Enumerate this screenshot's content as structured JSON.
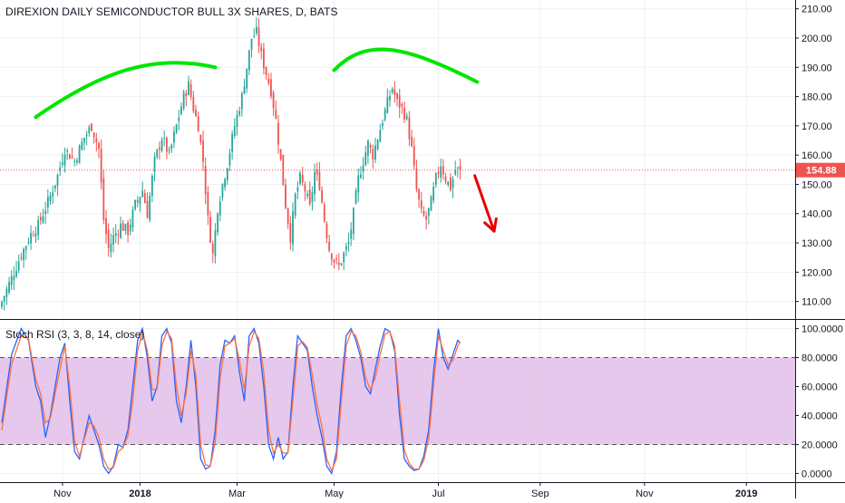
{
  "chart_data": [
    {
      "type": "candlestick",
      "title": "DIREXION DAILY SEMICONDUCTOR BULL 3X SHARES, D, BATS",
      "last_price_label": "154.88",
      "last_price": 154.88,
      "ylim": [
        104,
        213
      ],
      "y_ticks": [
        {
          "label": "210.00",
          "value": 210
        },
        {
          "label": "200.00",
          "value": 200
        },
        {
          "label": "190.00",
          "value": 190
        },
        {
          "label": "180.00",
          "value": 180
        },
        {
          "label": "170.00",
          "value": 170
        },
        {
          "label": "160.00",
          "value": 160
        },
        {
          "label": "150.00",
          "value": 150
        },
        {
          "label": "140.00",
          "value": 140
        },
        {
          "label": "130.00",
          "value": 130
        },
        {
          "label": "120.00",
          "value": 120
        },
        {
          "label": "110.00",
          "value": 110
        }
      ],
      "x_ticks": [
        {
          "label": "Nov",
          "index": 25
        },
        {
          "label": "2018",
          "index": 57
        },
        {
          "label": "Mar",
          "index": 97
        },
        {
          "label": "May",
          "index": 137
        },
        {
          "label": "Jul",
          "index": 180
        },
        {
          "label": "Sep",
          "index": 222
        },
        {
          "label": "Nov",
          "index": 265
        },
        {
          "label": "2019",
          "index": 307
        }
      ],
      "close_anchors": [
        [
          0,
          110
        ],
        [
          4,
          118
        ],
        [
          8,
          126
        ],
        [
          12,
          133
        ],
        [
          15,
          136
        ],
        [
          20,
          146
        ],
        [
          23,
          153
        ],
        [
          26,
          162
        ],
        [
          30,
          158
        ],
        [
          34,
          166
        ],
        [
          37,
          170
        ],
        [
          40,
          162
        ],
        [
          42,
          138
        ],
        [
          44,
          128
        ],
        [
          46,
          132
        ],
        [
          49,
          136
        ],
        [
          52,
          134
        ],
        [
          55,
          143
        ],
        [
          58,
          148
        ],
        [
          60,
          140
        ],
        [
          63,
          158
        ],
        [
          66,
          166
        ],
        [
          69,
          160
        ],
        [
          72,
          170
        ],
        [
          75,
          180
        ],
        [
          77,
          184
        ],
        [
          79,
          176
        ],
        [
          81,
          170
        ],
        [
          83,
          158
        ],
        [
          85,
          138
        ],
        [
          87,
          126
        ],
        [
          89,
          142
        ],
        [
          91,
          150
        ],
        [
          93,
          157
        ],
        [
          96,
          170
        ],
        [
          99,
          180
        ],
        [
          101,
          190
        ],
        [
          103,
          200
        ],
        [
          105,
          202
        ],
        [
          107,
          194
        ],
        [
          109,
          188
        ],
        [
          111,
          182
        ],
        [
          113,
          172
        ],
        [
          115,
          158
        ],
        [
          117,
          143
        ],
        [
          119,
          132
        ],
        [
          121,
          146
        ],
        [
          123,
          152
        ],
        [
          125,
          148
        ],
        [
          127,
          142
        ],
        [
          129,
          154
        ],
        [
          131,
          150
        ],
        [
          133,
          138
        ],
        [
          135,
          128
        ],
        [
          137,
          124
        ],
        [
          139,
          122
        ],
        [
          141,
          126
        ],
        [
          143,
          130
        ],
        [
          145,
          140
        ],
        [
          147,
          152
        ],
        [
          149,
          158
        ],
        [
          151,
          164
        ],
        [
          153,
          160
        ],
        [
          155,
          166
        ],
        [
          157,
          172
        ],
        [
          159,
          178
        ],
        [
          161,
          183
        ],
        [
          163,
          178
        ],
        [
          165,
          176
        ],
        [
          167,
          172
        ],
        [
          169,
          162
        ],
        [
          171,
          148
        ],
        [
          173,
          140
        ],
        [
          175,
          138
        ],
        [
          177,
          144
        ],
        [
          179,
          152
        ],
        [
          181,
          157
        ],
        [
          183,
          152
        ],
        [
          185,
          149
        ],
        [
          187,
          155
        ],
        [
          189,
          154.88
        ]
      ],
      "overlays": [
        {
          "type": "arc",
          "color": "#00e600",
          "points": [
            [
              14,
              173
            ],
            [
              40,
              188
            ],
            [
              62,
              195
            ],
            [
              88,
              190
            ]
          ]
        },
        {
          "type": "arc",
          "color": "#00e600",
          "points": [
            [
              137,
              189
            ],
            [
              150,
              200
            ],
            [
              165,
              198
            ],
            [
              196,
              185
            ]
          ]
        },
        {
          "type": "arrow",
          "color": "#e60000",
          "from": [
            195,
            153
          ],
          "to": [
            203,
            134
          ]
        }
      ],
      "colors": {
        "up": "#26a69a",
        "down": "#ef5350",
        "price_line": "#ef5350"
      }
    },
    {
      "type": "line",
      "title": "Stoch RSI (3, 3, 8, 14, close)",
      "ylim": [
        -6,
        106
      ],
      "y_ticks": [
        {
          "label": "100.0000",
          "value": 100
        },
        {
          "label": "80.0000",
          "value": 80
        },
        {
          "label": "60.0000",
          "value": 60
        },
        {
          "label": "40.0000",
          "value": 40
        },
        {
          "label": "20.0000",
          "value": 20
        },
        {
          "label": "0.0000",
          "value": 0
        }
      ],
      "band": {
        "upper": 80,
        "lower": 20,
        "fill": "#e1bee7"
      },
      "series": [
        {
          "color": "#2962ff",
          "anchors": [
            [
              0,
              35
            ],
            [
              4,
              82
            ],
            [
              8,
              100
            ],
            [
              11,
              92
            ],
            [
              14,
              60
            ],
            [
              16,
              50
            ],
            [
              18,
              25
            ],
            [
              20,
              40
            ],
            [
              24,
              80
            ],
            [
              26,
              90
            ],
            [
              28,
              50
            ],
            [
              30,
              15
            ],
            [
              32,
              10
            ],
            [
              36,
              40
            ],
            [
              38,
              30
            ],
            [
              40,
              20
            ],
            [
              42,
              5
            ],
            [
              44,
              0
            ],
            [
              46,
              5
            ],
            [
              48,
              20
            ],
            [
              50,
              18
            ],
            [
              52,
              30
            ],
            [
              54,
              60
            ],
            [
              56,
              92
            ],
            [
              58,
              100
            ],
            [
              60,
              80
            ],
            [
              62,
              50
            ],
            [
              64,
              60
            ],
            [
              66,
              95
            ],
            [
              68,
              100
            ],
            [
              70,
              90
            ],
            [
              72,
              50
            ],
            [
              74,
              35
            ],
            [
              76,
              60
            ],
            [
              78,
              92
            ],
            [
              80,
              60
            ],
            [
              82,
              10
            ],
            [
              84,
              3
            ],
            [
              86,
              5
            ],
            [
              88,
              30
            ],
            [
              90,
              75
            ],
            [
              92,
              92
            ],
            [
              94,
              90
            ],
            [
              96,
              95
            ],
            [
              98,
              70
            ],
            [
              100,
              50
            ],
            [
              102,
              95
            ],
            [
              104,
              100
            ],
            [
              106,
              90
            ],
            [
              108,
              60
            ],
            [
              110,
              20
            ],
            [
              112,
              10
            ],
            [
              114,
              25
            ],
            [
              116,
              10
            ],
            [
              118,
              15
            ],
            [
              120,
              60
            ],
            [
              122,
              95
            ],
            [
              124,
              90
            ],
            [
              126,
              85
            ],
            [
              128,
              60
            ],
            [
              130,
              40
            ],
            [
              132,
              25
            ],
            [
              134,
              5
            ],
            [
              136,
              0
            ],
            [
              138,
              15
            ],
            [
              140,
              60
            ],
            [
              142,
              95
            ],
            [
              144,
              100
            ],
            [
              146,
              92
            ],
            [
              148,
              80
            ],
            [
              150,
              60
            ],
            [
              152,
              55
            ],
            [
              154,
              72
            ],
            [
              156,
              88
            ],
            [
              158,
              100
            ],
            [
              160,
              98
            ],
            [
              162,
              85
            ],
            [
              164,
              40
            ],
            [
              166,
              10
            ],
            [
              168,
              5
            ],
            [
              170,
              2
            ],
            [
              172,
              3
            ],
            [
              174,
              12
            ],
            [
              176,
              30
            ],
            [
              178,
              70
            ],
            [
              180,
              100
            ],
            [
              182,
              80
            ],
            [
              184,
              72
            ],
            [
              186,
              82
            ],
            [
              188,
              92
            ],
            [
              189,
              90
            ]
          ]
        },
        {
          "color": "#ff7043",
          "anchors": [
            [
              0,
              30
            ],
            [
              4,
              75
            ],
            [
              8,
              95
            ],
            [
              11,
              93
            ],
            [
              14,
              65
            ],
            [
              16,
              55
            ],
            [
              18,
              35
            ],
            [
              20,
              38
            ],
            [
              24,
              72
            ],
            [
              26,
              88
            ],
            [
              28,
              60
            ],
            [
              30,
              22
            ],
            [
              32,
              12
            ],
            [
              36,
              35
            ],
            [
              38,
              33
            ],
            [
              40,
              25
            ],
            [
              42,
              10
            ],
            [
              44,
              3
            ],
            [
              46,
              4
            ],
            [
              48,
              15
            ],
            [
              50,
              18
            ],
            [
              52,
              26
            ],
            [
              54,
              50
            ],
            [
              56,
              85
            ],
            [
              58,
              98
            ],
            [
              60,
              85
            ],
            [
              62,
              58
            ],
            [
              64,
              58
            ],
            [
              66,
              88
            ],
            [
              68,
              98
            ],
            [
              70,
              93
            ],
            [
              72,
              60
            ],
            [
              74,
              40
            ],
            [
              76,
              55
            ],
            [
              78,
              85
            ],
            [
              80,
              68
            ],
            [
              82,
              20
            ],
            [
              84,
              6
            ],
            [
              86,
              5
            ],
            [
              88,
              22
            ],
            [
              90,
              65
            ],
            [
              92,
              88
            ],
            [
              94,
              90
            ],
            [
              96,
              93
            ],
            [
              98,
              78
            ],
            [
              100,
              58
            ],
            [
              102,
              88
            ],
            [
              104,
              98
            ],
            [
              106,
              93
            ],
            [
              108,
              70
            ],
            [
              110,
              30
            ],
            [
              112,
              14
            ],
            [
              114,
              20
            ],
            [
              116,
              14
            ],
            [
              118,
              14
            ],
            [
              120,
              50
            ],
            [
              122,
              88
            ],
            [
              124,
              91
            ],
            [
              126,
              87
            ],
            [
              128,
              68
            ],
            [
              130,
              48
            ],
            [
              132,
              32
            ],
            [
              134,
              10
            ],
            [
              136,
              2
            ],
            [
              138,
              10
            ],
            [
              140,
              50
            ],
            [
              142,
              88
            ],
            [
              144,
              98
            ],
            [
              146,
              95
            ],
            [
              148,
              84
            ],
            [
              150,
              66
            ],
            [
              152,
              58
            ],
            [
              154,
              66
            ],
            [
              156,
              82
            ],
            [
              158,
              96
            ],
            [
              160,
              98
            ],
            [
              162,
              88
            ],
            [
              164,
              50
            ],
            [
              166,
              16
            ],
            [
              168,
              7
            ],
            [
              170,
              3
            ],
            [
              172,
              3
            ],
            [
              174,
              9
            ],
            [
              176,
              24
            ],
            [
              178,
              60
            ],
            [
              180,
              95
            ],
            [
              182,
              85
            ],
            [
              184,
              75
            ],
            [
              186,
              78
            ],
            [
              188,
              88
            ],
            [
              189,
              91
            ]
          ]
        }
      ]
    }
  ]
}
